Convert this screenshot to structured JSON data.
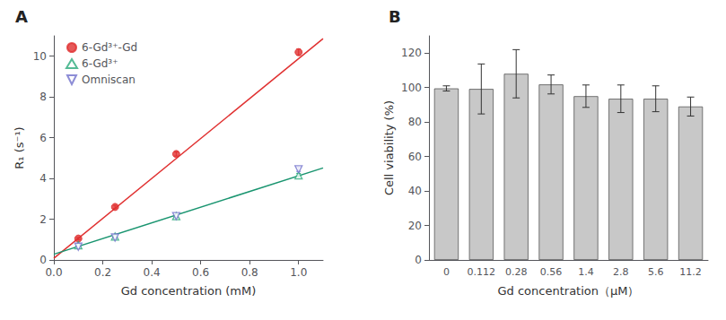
{
  "chart_data": [
    {
      "type": "scatter",
      "title": "A",
      "xlabel": "Gd concentration (mM)",
      "ylabel": "R₁ (s⁻¹)",
      "xlim": [
        0,
        1.1
      ],
      "ylim": [
        0,
        11
      ],
      "xticks": [
        {
          "value": 0.0,
          "label": "0.0"
        },
        0.2,
        0.4,
        0.6,
        0.8,
        {
          "value": 1.0,
          "label": "1.0"
        }
      ],
      "yticks": [
        0,
        2,
        4,
        6,
        8,
        10
      ],
      "grid": false,
      "legend": "upper left",
      "series": [
        {
          "name": "6-Gd³⁺-Gd",
          "color": "#e03030",
          "marker": "circle",
          "x": [
            0.1,
            0.25,
            0.5,
            1.0
          ],
          "values": [
            1.05,
            2.6,
            5.2,
            10.2
          ],
          "yerr": [
            0.05,
            0.08,
            0.1,
            0.15
          ],
          "fit_x": [
            0,
            1.1
          ],
          "fit_values": [
            0.08,
            10.86
          ],
          "fit_color": "#e03030"
        },
        {
          "name": "6-Gd³⁺",
          "color": "#2aaa7a",
          "marker": "triangle-up-open",
          "x": [
            0.1,
            0.25,
            0.5,
            1.0
          ],
          "values": [
            0.72,
            1.15,
            2.15,
            4.15
          ],
          "yerr": [
            0.04,
            0.05,
            0.07,
            0.1
          ],
          "fit_x": [
            0,
            1.1
          ],
          "fit_values": [
            0.28,
            4.515
          ],
          "fit_color": "#1a9570"
        },
        {
          "name": "Omniscan",
          "color": "#7070cc",
          "marker": "triangle-down-open",
          "x": [
            0.1,
            0.25,
            0.5,
            1.0
          ],
          "values": [
            0.65,
            1.1,
            2.15,
            4.45
          ],
          "yerr": [
            0.04,
            0.05,
            0.07,
            0.1
          ]
        }
      ]
    },
    {
      "type": "bar",
      "title": "B",
      "xlabel": "Gd concentration（μM）",
      "ylabel": "Cell viability (%)",
      "categories": [
        "0",
        "0.112",
        "0.28",
        "0.56",
        "1.4",
        "2.8",
        "5.6",
        "11.2"
      ],
      "values": [
        99.5,
        99.2,
        108.0,
        101.8,
        95.0,
        93.5,
        93.5,
        89.0
      ],
      "yerr": [
        1.5,
        14.5,
        14.0,
        5.5,
        6.5,
        8.0,
        7.5,
        5.5
      ],
      "color": "#c8c8c8",
      "ylim": [
        0,
        130
      ],
      "yticks": [
        0,
        20,
        40,
        60,
        80,
        100,
        120
      ],
      "grid": false
    }
  ]
}
